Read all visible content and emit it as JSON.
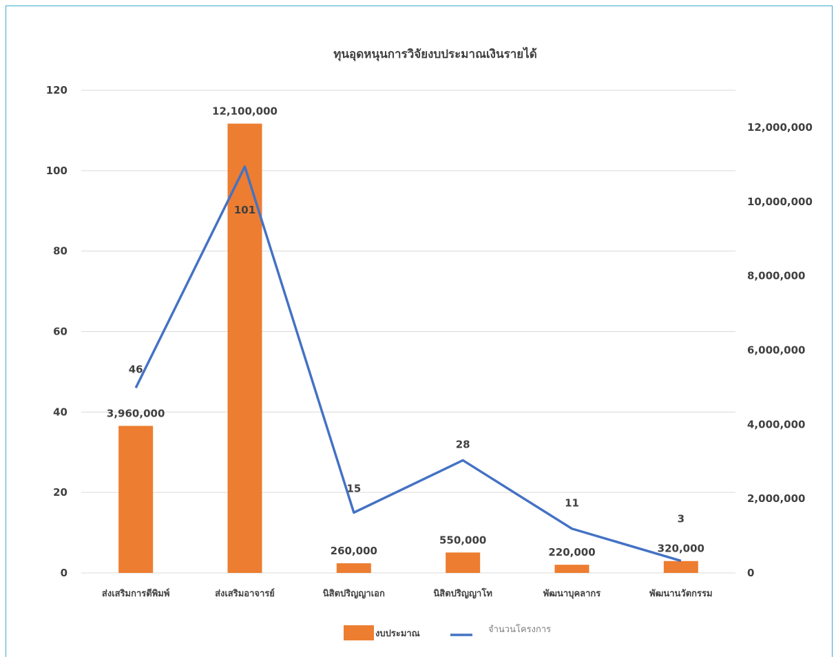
{
  "chart_data": {
    "type": "bar",
    "title": "ทุนอุดหนุนการวิจัยงบประมาณเงินรายได้",
    "categories": [
      "ส่งเสริมการตีพิมพ์",
      "ส่งเสริมอาจารย์",
      "นิสิตปริญญาเอก",
      "นิสิตปริญญาโท",
      "พัฒนาบุคลากร",
      "พัฒนานวัตกรรม"
    ],
    "series": [
      {
        "name": "งบประมาณ",
        "type": "bar",
        "axis": "right",
        "color": "#ED7D31",
        "values": [
          3960000,
          12100000,
          260000,
          550000,
          220000,
          320000
        ],
        "labels": [
          "3,960,000",
          "12,100,000",
          "260,000",
          "550,000",
          "220,000",
          "320,000"
        ]
      },
      {
        "name": "จำนวนโครงการ",
        "type": "line",
        "axis": "left",
        "color": "#4472C4",
        "values": [
          46,
          101,
          15,
          28,
          11,
          3
        ],
        "labels": [
          "46",
          "101",
          "15",
          "28",
          "11",
          "3"
        ]
      }
    ],
    "y_left": {
      "ylim": [
        0,
        120
      ],
      "ticks": [
        "0",
        "20",
        "40",
        "60",
        "80",
        "100",
        "120"
      ]
    },
    "y_right": {
      "ylim": [
        0,
        13000000
      ],
      "ticks": [
        "0",
        "2,000,000",
        "4,000,000",
        "6,000,000",
        "8,000,000",
        "10,000,000",
        "12,000,000"
      ]
    },
    "grid": true,
    "legend": "bottom"
  }
}
